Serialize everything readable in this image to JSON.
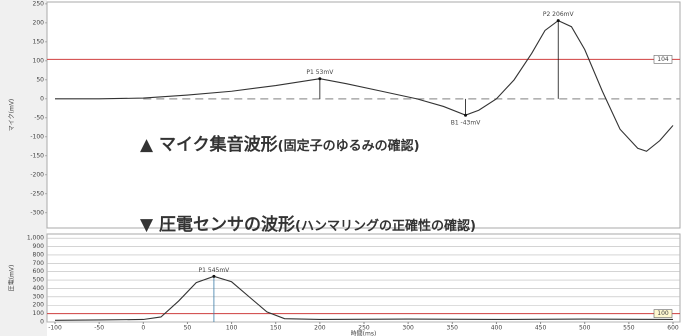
{
  "captions": [
    {
      "main": "▲ マイク集音波形",
      "sub": "(固定子のゆるみの確認)"
    },
    {
      "main": "▼ 圧電センサの波形",
      "sub": "(ハンマリングの正確性の確認)"
    }
  ],
  "chart_data": [
    {
      "type": "line",
      "y_label": "マイク(mV)",
      "xlim": [
        -100,
        600
      ],
      "ylim": [
        -340,
        255
      ],
      "yticks": [
        250,
        200,
        150,
        100,
        50,
        0,
        -50,
        -100,
        -150,
        -200,
        -250,
        -300
      ],
      "x": [
        -100,
        -50,
        0,
        50,
        100,
        150,
        200,
        230,
        270,
        310,
        340,
        365,
        380,
        400,
        420,
        440,
        455,
        470,
        485,
        500,
        520,
        540,
        560,
        570,
        585,
        600
      ],
      "values": [
        0,
        0,
        2,
        10,
        20,
        35,
        53,
        40,
        20,
        0,
        -20,
        -43,
        -30,
        0,
        50,
        120,
        180,
        206,
        190,
        130,
        20,
        -80,
        -130,
        -138,
        -110,
        -70
      ],
      "color": "#333333",
      "threshold": 104,
      "threshold_color": "#d04040",
      "annotations": [
        {
          "label": "P1 53mV",
          "x": 200,
          "y": 53
        },
        {
          "label": "B1 -43mV",
          "x": 365,
          "y": -43
        },
        {
          "label": "P2 206mV",
          "x": 470,
          "y": 206
        }
      ]
    },
    {
      "type": "line",
      "y_label": "圧電(mV)",
      "x_label": "時間(ms)",
      "xlim": [
        -100,
        600
      ],
      "ylim": [
        0,
        1050
      ],
      "yticks": [
        0,
        100,
        200,
        300,
        400,
        500,
        600,
        700,
        800,
        900,
        {
          "value": 1000,
          "label": "1,000"
        }
      ],
      "xticks": [
        -100,
        -50,
        0,
        50,
        100,
        150,
        200,
        250,
        300,
        350,
        400,
        450,
        500,
        550,
        600
      ],
      "x": [
        -100,
        -50,
        0,
        20,
        40,
        60,
        80,
        100,
        120,
        140,
        160,
        200,
        300,
        400,
        500,
        600
      ],
      "values": [
        20,
        25,
        30,
        60,
        250,
        470,
        545,
        480,
        300,
        120,
        40,
        30,
        35,
        30,
        35,
        30
      ],
      "color": "#333333",
      "threshold": 100,
      "threshold_color": "#d04040",
      "grid": true,
      "annotations": [
        {
          "label": "P1 545mV",
          "x": 80,
          "y": 545
        }
      ]
    }
  ]
}
